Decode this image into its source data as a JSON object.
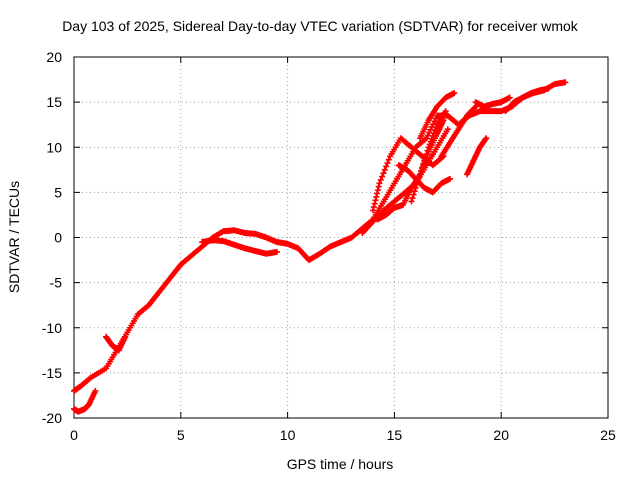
{
  "chart_data": {
    "type": "scatter",
    "title": "Day 103 of 2025, Sidereal Day-to-day VTEC variation (SDTVAR) for receiver wmok",
    "xlabel": "GPS time / hours",
    "ylabel": "SDTVAR / TECUs",
    "xlim": [
      0,
      25
    ],
    "ylim": [
      -20,
      20
    ],
    "xticks": [
      0,
      5,
      10,
      15,
      20,
      25
    ],
    "yticks": [
      -20,
      -15,
      -10,
      -5,
      0,
      5,
      10,
      15,
      20
    ],
    "grid": true,
    "marker": "+",
    "color": "#ff0000",
    "series": [
      {
        "x": [
          0,
          0.3,
          0.8,
          1.5,
          2.0,
          2.5,
          3.0,
          3.5,
          4.0,
          4.5,
          5.0,
          5.5,
          6.0,
          6.5,
          7.0,
          7.5,
          8.0,
          8.5,
          9.0,
          9.5,
          10.0,
          10.5,
          11.0,
          11.5,
          12.0,
          12.5,
          13.0,
          13.5,
          14.0,
          14.5,
          15.0,
          15.5,
          16.0,
          16.5,
          17.0,
          17.5,
          18.0,
          18.5,
          19.0,
          19.5,
          20.0,
          20.5,
          21.0,
          21.5,
          22.0,
          22.5,
          23.0
        ],
        "y": [
          -17,
          -16.5,
          -15.5,
          -14.5,
          -12.5,
          -10.5,
          -8.5,
          -7.5,
          -6,
          -4.5,
          -3,
          -2,
          -1,
          0,
          0.7,
          0.8,
          0.5,
          0.4,
          0,
          -0.5,
          -0.7,
          -1.2,
          -2.5,
          -1.8,
          -1,
          -0.5,
          0,
          1,
          2,
          4,
          6,
          8,
          10,
          11,
          13.5,
          13.5,
          12.5,
          13.5,
          14,
          14,
          14,
          14.5,
          15.5,
          16,
          16.3,
          17,
          17.2
        ]
      },
      {
        "x": [
          0,
          0.2,
          0.5,
          0.7,
          1.0
        ],
        "y": [
          -19,
          -19.3,
          -19,
          -18.5,
          -17
        ]
      },
      {
        "x": [
          1.5,
          1.8,
          2.1,
          2.4
        ],
        "y": [
          -11,
          -12,
          -12.5,
          -11
        ]
      },
      {
        "x": [
          6.0,
          6.5,
          7.0,
          7.5,
          8.0,
          8.5,
          9.0,
          9.5
        ],
        "y": [
          -0.5,
          -0.3,
          -0.4,
          -0.8,
          -1.2,
          -1.5,
          -1.8,
          -1.6
        ]
      },
      {
        "x": [
          13.5,
          14.0,
          14.5,
          15.0,
          15.5,
          16.0,
          16.5,
          17.0,
          17.5
        ],
        "y": [
          0.5,
          1.8,
          3,
          4,
          5,
          6,
          8,
          10,
          12
        ]
      },
      {
        "x": [
          14.0,
          14.3,
          14.8,
          15.3,
          15.8,
          16.3,
          16.8,
          17.3
        ],
        "y": [
          3,
          6,
          9,
          11,
          10,
          9,
          8,
          9
        ]
      },
      {
        "x": [
          15.2,
          15.6,
          16.0,
          16.4,
          16.8,
          17.2,
          17.6
        ],
        "y": [
          8,
          7.5,
          6.5,
          5.5,
          5,
          6,
          6.5
        ]
      },
      {
        "x": [
          14.2,
          14.6,
          15.0,
          15.4,
          15.8,
          16.2,
          16.6,
          17.0,
          17.3
        ],
        "y": [
          2,
          2.5,
          3.3,
          3.6,
          5.5,
          7,
          9.5,
          11.5,
          13
        ]
      },
      {
        "x": [
          15.8,
          16.2,
          16.6,
          17.0,
          17.4
        ],
        "y": [
          4,
          7,
          10,
          12.5,
          14
        ]
      },
      {
        "x": [
          16.2,
          16.6,
          17.0,
          17.4,
          17.8
        ],
        "y": [
          11,
          13,
          14.5,
          15.5,
          16
        ]
      },
      {
        "x": [
          17.2,
          17.6,
          18.0,
          18.4,
          18.8
        ],
        "y": [
          9,
          10.5,
          12,
          13.5,
          14.5
        ]
      },
      {
        "x": [
          18.4,
          18.7,
          19.0,
          19.3
        ],
        "y": [
          7,
          8.5,
          10,
          11
        ]
      },
      {
        "x": [
          18.8,
          19.2,
          19.6,
          20.0,
          20.4
        ],
        "y": [
          15,
          14.5,
          14.8,
          15,
          15.5
        ]
      },
      {
        "x": [
          20.2,
          20.6,
          21.0,
          21.4,
          21.8,
          22.2
        ],
        "y": [
          14,
          15,
          15.5,
          16,
          16.3,
          16.5
        ]
      }
    ]
  }
}
